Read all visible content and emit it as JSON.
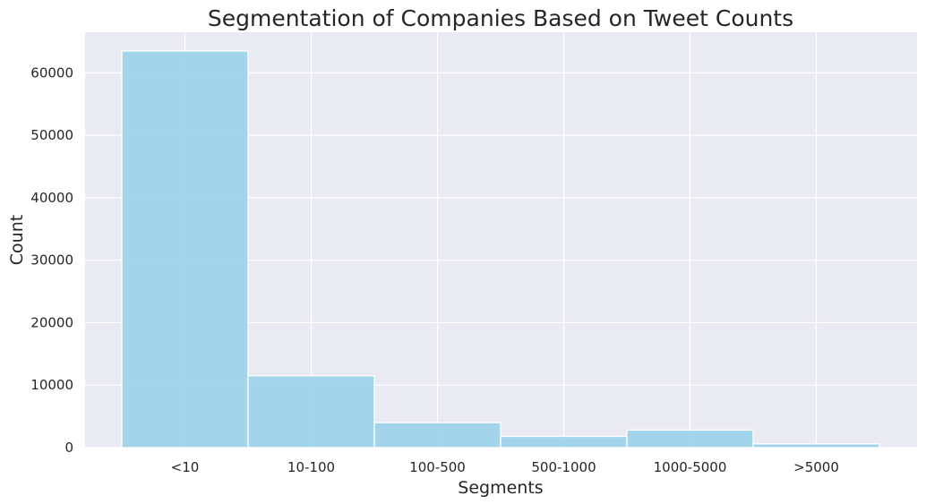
{
  "chart_data": {
    "type": "bar",
    "title": "Segmentation of Companies Based on Tweet Counts",
    "xlabel": "Segments",
    "ylabel": "Count",
    "categories": [
      "<10",
      "10-100",
      "100-500",
      "500-1000",
      "1000-5000",
      ">5000"
    ],
    "values": [
      63500,
      11500,
      4000,
      1800,
      2800,
      600
    ],
    "ylim": [
      0,
      66500
    ],
    "yticks": [
      0,
      10000,
      20000,
      30000,
      40000,
      50000,
      60000
    ],
    "ytick_labels": [
      "0",
      "10000",
      "20000",
      "30000",
      "40000",
      "50000",
      "60000"
    ],
    "grid": true,
    "legend": "none",
    "colors": {
      "bar": "#9ed4ea",
      "bar_edge": "#ffffff",
      "plot_background": "#eaeaf2",
      "grid": "#ffffff",
      "text": "#262626"
    }
  }
}
